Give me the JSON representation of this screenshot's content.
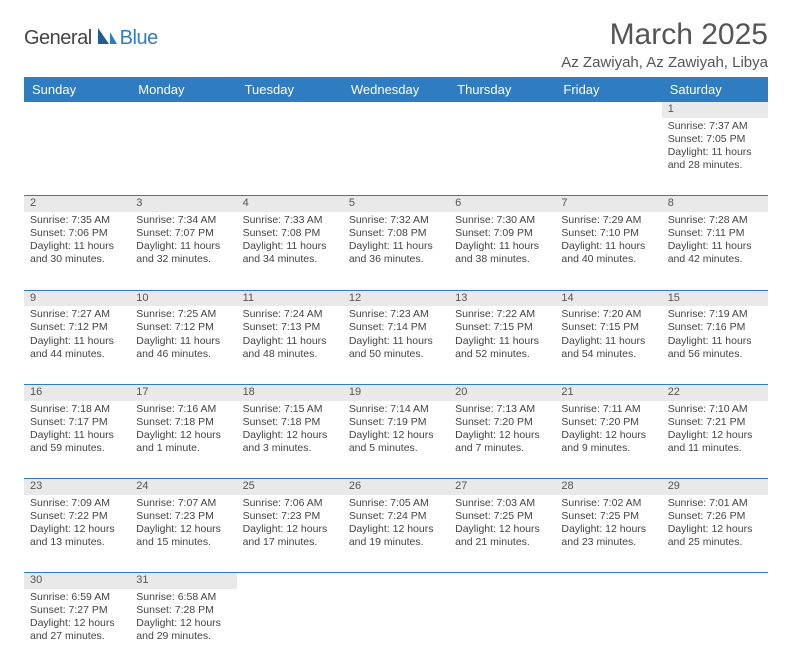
{
  "logo": {
    "part1": "General",
    "part2": "Blue"
  },
  "title": "March 2025",
  "location": "Az Zawiyah, Az Zawiyah, Libya",
  "colors": {
    "accent": "#2f7cc0",
    "daynum_bg": "#e9e9e9",
    "text": "#444444"
  },
  "day_headers": [
    "Sunday",
    "Monday",
    "Tuesday",
    "Wednesday",
    "Thursday",
    "Friday",
    "Saturday"
  ],
  "weeks": [
    [
      null,
      null,
      null,
      null,
      null,
      null,
      {
        "d": "1",
        "sr": "Sunrise: 7:37 AM",
        "ss": "Sunset: 7:05 PM",
        "dl1": "Daylight: 11 hours",
        "dl2": "and 28 minutes."
      }
    ],
    [
      {
        "d": "2",
        "sr": "Sunrise: 7:35 AM",
        "ss": "Sunset: 7:06 PM",
        "dl1": "Daylight: 11 hours",
        "dl2": "and 30 minutes."
      },
      {
        "d": "3",
        "sr": "Sunrise: 7:34 AM",
        "ss": "Sunset: 7:07 PM",
        "dl1": "Daylight: 11 hours",
        "dl2": "and 32 minutes."
      },
      {
        "d": "4",
        "sr": "Sunrise: 7:33 AM",
        "ss": "Sunset: 7:08 PM",
        "dl1": "Daylight: 11 hours",
        "dl2": "and 34 minutes."
      },
      {
        "d": "5",
        "sr": "Sunrise: 7:32 AM",
        "ss": "Sunset: 7:08 PM",
        "dl1": "Daylight: 11 hours",
        "dl2": "and 36 minutes."
      },
      {
        "d": "6",
        "sr": "Sunrise: 7:30 AM",
        "ss": "Sunset: 7:09 PM",
        "dl1": "Daylight: 11 hours",
        "dl2": "and 38 minutes."
      },
      {
        "d": "7",
        "sr": "Sunrise: 7:29 AM",
        "ss": "Sunset: 7:10 PM",
        "dl1": "Daylight: 11 hours",
        "dl2": "and 40 minutes."
      },
      {
        "d": "8",
        "sr": "Sunrise: 7:28 AM",
        "ss": "Sunset: 7:11 PM",
        "dl1": "Daylight: 11 hours",
        "dl2": "and 42 minutes."
      }
    ],
    [
      {
        "d": "9",
        "sr": "Sunrise: 7:27 AM",
        "ss": "Sunset: 7:12 PM",
        "dl1": "Daylight: 11 hours",
        "dl2": "and 44 minutes."
      },
      {
        "d": "10",
        "sr": "Sunrise: 7:25 AM",
        "ss": "Sunset: 7:12 PM",
        "dl1": "Daylight: 11 hours",
        "dl2": "and 46 minutes."
      },
      {
        "d": "11",
        "sr": "Sunrise: 7:24 AM",
        "ss": "Sunset: 7:13 PM",
        "dl1": "Daylight: 11 hours",
        "dl2": "and 48 minutes."
      },
      {
        "d": "12",
        "sr": "Sunrise: 7:23 AM",
        "ss": "Sunset: 7:14 PM",
        "dl1": "Daylight: 11 hours",
        "dl2": "and 50 minutes."
      },
      {
        "d": "13",
        "sr": "Sunrise: 7:22 AM",
        "ss": "Sunset: 7:15 PM",
        "dl1": "Daylight: 11 hours",
        "dl2": "and 52 minutes."
      },
      {
        "d": "14",
        "sr": "Sunrise: 7:20 AM",
        "ss": "Sunset: 7:15 PM",
        "dl1": "Daylight: 11 hours",
        "dl2": "and 54 minutes."
      },
      {
        "d": "15",
        "sr": "Sunrise: 7:19 AM",
        "ss": "Sunset: 7:16 PM",
        "dl1": "Daylight: 11 hours",
        "dl2": "and 56 minutes."
      }
    ],
    [
      {
        "d": "16",
        "sr": "Sunrise: 7:18 AM",
        "ss": "Sunset: 7:17 PM",
        "dl1": "Daylight: 11 hours",
        "dl2": "and 59 minutes."
      },
      {
        "d": "17",
        "sr": "Sunrise: 7:16 AM",
        "ss": "Sunset: 7:18 PM",
        "dl1": "Daylight: 12 hours",
        "dl2": "and 1 minute."
      },
      {
        "d": "18",
        "sr": "Sunrise: 7:15 AM",
        "ss": "Sunset: 7:18 PM",
        "dl1": "Daylight: 12 hours",
        "dl2": "and 3 minutes."
      },
      {
        "d": "19",
        "sr": "Sunrise: 7:14 AM",
        "ss": "Sunset: 7:19 PM",
        "dl1": "Daylight: 12 hours",
        "dl2": "and 5 minutes."
      },
      {
        "d": "20",
        "sr": "Sunrise: 7:13 AM",
        "ss": "Sunset: 7:20 PM",
        "dl1": "Daylight: 12 hours",
        "dl2": "and 7 minutes."
      },
      {
        "d": "21",
        "sr": "Sunrise: 7:11 AM",
        "ss": "Sunset: 7:20 PM",
        "dl1": "Daylight: 12 hours",
        "dl2": "and 9 minutes."
      },
      {
        "d": "22",
        "sr": "Sunrise: 7:10 AM",
        "ss": "Sunset: 7:21 PM",
        "dl1": "Daylight: 12 hours",
        "dl2": "and 11 minutes."
      }
    ],
    [
      {
        "d": "23",
        "sr": "Sunrise: 7:09 AM",
        "ss": "Sunset: 7:22 PM",
        "dl1": "Daylight: 12 hours",
        "dl2": "and 13 minutes."
      },
      {
        "d": "24",
        "sr": "Sunrise: 7:07 AM",
        "ss": "Sunset: 7:23 PM",
        "dl1": "Daylight: 12 hours",
        "dl2": "and 15 minutes."
      },
      {
        "d": "25",
        "sr": "Sunrise: 7:06 AM",
        "ss": "Sunset: 7:23 PM",
        "dl1": "Daylight: 12 hours",
        "dl2": "and 17 minutes."
      },
      {
        "d": "26",
        "sr": "Sunrise: 7:05 AM",
        "ss": "Sunset: 7:24 PM",
        "dl1": "Daylight: 12 hours",
        "dl2": "and 19 minutes."
      },
      {
        "d": "27",
        "sr": "Sunrise: 7:03 AM",
        "ss": "Sunset: 7:25 PM",
        "dl1": "Daylight: 12 hours",
        "dl2": "and 21 minutes."
      },
      {
        "d": "28",
        "sr": "Sunrise: 7:02 AM",
        "ss": "Sunset: 7:25 PM",
        "dl1": "Daylight: 12 hours",
        "dl2": "and 23 minutes."
      },
      {
        "d": "29",
        "sr": "Sunrise: 7:01 AM",
        "ss": "Sunset: 7:26 PM",
        "dl1": "Daylight: 12 hours",
        "dl2": "and 25 minutes."
      }
    ],
    [
      {
        "d": "30",
        "sr": "Sunrise: 6:59 AM",
        "ss": "Sunset: 7:27 PM",
        "dl1": "Daylight: 12 hours",
        "dl2": "and 27 minutes."
      },
      {
        "d": "31",
        "sr": "Sunrise: 6:58 AM",
        "ss": "Sunset: 7:28 PM",
        "dl1": "Daylight: 12 hours",
        "dl2": "and 29 minutes."
      },
      null,
      null,
      null,
      null,
      null
    ]
  ]
}
